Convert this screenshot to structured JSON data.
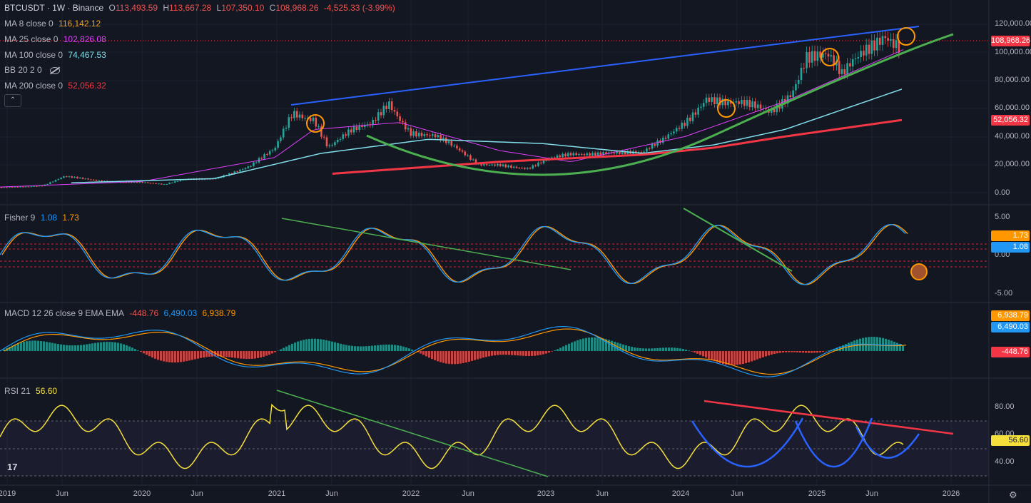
{
  "header": {
    "symbol": "BTCUSDT · 1W · Binance",
    "open_label": "O",
    "open": "113,493.59",
    "high_label": "H",
    "high": "113,667.28",
    "low_label": "L",
    "low": "107,350.10",
    "close_label": "C",
    "close": "108,968.26",
    "change": "-4,525.33 (-3.99%)"
  },
  "indicators": [
    {
      "label": "MA 8 close 0",
      "value": "116,142.12",
      "color": "#f7a21b"
    },
    {
      "label": "MA 25 close 0",
      "value": "102,826.08",
      "color": "#e040fb"
    },
    {
      "label": "MA 100 close 0",
      "value": "74,467.53",
      "color": "#80deea"
    },
    {
      "label": "BB 20 2 0",
      "value": "",
      "color": "#b2b5be"
    },
    {
      "label": "MA 200 close 0",
      "value": "52,056.32",
      "color": "#f23645"
    }
  ],
  "price_axis": {
    "ticks": [
      "120,000.00",
      "100,000.00",
      "80,000.00",
      "60,000.00",
      "40,000.00",
      "20,000.00",
      "0.00"
    ],
    "last_price": "108,968.26",
    "ma200_badge": "52,056.32"
  },
  "fisher": {
    "title": "Fisher 9",
    "v1": "1.08",
    "v2": "1.73",
    "ticks": [
      "5.00",
      "0.00",
      "-5.00"
    ],
    "badge_orange": "1.73",
    "badge_blue": "1.08"
  },
  "macd": {
    "title": "MACD 12 26 close 9 EMA EMA",
    "hist": "-448.76",
    "macd": "6,490.03",
    "signal": "6,938.79",
    "badge_signal": "6,938.79",
    "badge_macd": "6,490.03",
    "badge_hist": "-448.76"
  },
  "rsi": {
    "title": "RSI 21",
    "value": "56.60",
    "ticks": [
      "80.00",
      "60.00",
      "40.00"
    ],
    "badge": "56.60"
  },
  "time_axis": {
    "ticks": [
      "2019",
      "Jun",
      "2020",
      "Jun",
      "2021",
      "Jun",
      "2022",
      "Jun",
      "2023",
      "Jun",
      "2024",
      "Jun",
      "2025",
      "Jun",
      "2026"
    ]
  },
  "colors": {
    "background": "#131722",
    "up": "#26a69a",
    "down": "#ef5350",
    "trend_blue": "#2962ff",
    "trend_green": "#4caf50",
    "trend_red": "#f23645",
    "rsi_line": "#f5e03b",
    "fisher_blue": "#2196f3",
    "fisher_orange": "#ff9800"
  }
}
